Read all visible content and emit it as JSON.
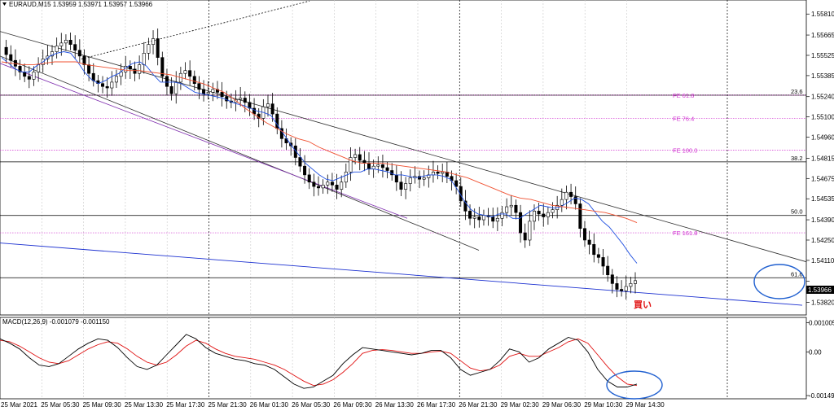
{
  "window": {
    "header": "EURAUD,M15  1.53959 1.53971 1.53957 1.53966",
    "macd_header": "MACD(12,26,9) -0.001079 -0.001150",
    "current_price": "1.53966"
  },
  "colors": {
    "background": "#ffffff",
    "candle": "#000000",
    "ma_fast": "#1f4fe0",
    "ma_slow": "#f05030",
    "macd_main": "#000000",
    "macd_signal": "#e01010",
    "fib_level": "#d030d0",
    "trend_line": "#303030",
    "support_line": "#1a2fd0",
    "annotation_circle": "#2060d0",
    "buy_text": "#e01010"
  },
  "chart_data": [
    {
      "type": "candlestick",
      "symbol": "EURAUD",
      "timeframe": "M15",
      "ylim": [
        1.5375,
        1.5589
      ],
      "y_ticks": [
        "1.55810",
        "1.55665",
        "1.55525",
        "1.55385",
        "1.55240",
        "1.55100",
        "1.54960",
        "1.54815",
        "1.54675",
        "1.54535",
        "1.54390",
        "1.54250",
        "1.54110",
        "1.53966",
        "1.53820"
      ],
      "x_ticks": [
        "25 Mar 2021",
        "25 Mar 05:30",
        "25 Mar 09:30",
        "25 Mar 13:30",
        "25 Mar 17:30",
        "25 Mar 21:30",
        "26 Mar 01:30",
        "26 Mar 05:30",
        "26 Mar 09:30",
        "26 Mar 13:30",
        "26 Mar 17:30",
        "26 Mar 21:30",
        "29 Mar 02:30",
        "29 Mar 06:30",
        "29 Mar 10:30",
        "29 Mar 14:30"
      ],
      "session_breaks": [
        "25 Mar 21:30",
        "26 Mar 21:30"
      ],
      "close_path": [
        1.5558,
        1.5553,
        1.5549,
        1.5545,
        1.5541,
        1.5538,
        1.5536,
        1.5541,
        1.5546,
        1.555,
        1.5552,
        1.5555,
        1.5559,
        1.5561,
        1.5563,
        1.556,
        1.5556,
        1.5552,
        1.5546,
        1.554,
        1.5535,
        1.5533,
        1.5531,
        1.553,
        1.5534,
        1.5538,
        1.5541,
        1.5545,
        1.5543,
        1.554,
        1.5546,
        1.5554,
        1.556,
        1.5564,
        1.5551,
        1.5538,
        1.5531,
        1.5526,
        1.5534,
        1.554,
        1.5542,
        1.5538,
        1.5533,
        1.5529,
        1.5526,
        1.5527,
        1.5529,
        1.5527,
        1.5524,
        1.5521,
        1.552,
        1.5522,
        1.5523,
        1.552,
        1.5516,
        1.5512,
        1.5509,
        1.5517,
        1.5519,
        1.5512,
        1.5502,
        1.5495,
        1.5492,
        1.549,
        1.5482,
        1.5476,
        1.547,
        1.5465,
        1.5462,
        1.5461,
        1.5463,
        1.5465,
        1.5463,
        1.546,
        1.5465,
        1.5472,
        1.5482,
        1.5484,
        1.548,
        1.5478,
        1.5474,
        1.5476,
        1.5477,
        1.5475,
        1.5473,
        1.547,
        1.5465,
        1.546,
        1.5464,
        1.5468,
        1.5469,
        1.5467,
        1.5468,
        1.547,
        1.5472,
        1.5471,
        1.5472,
        1.5469,
        1.5466,
        1.5462,
        1.5452,
        1.5445,
        1.544,
        1.5441,
        1.5439,
        1.5442,
        1.5441,
        1.5438,
        1.544,
        1.5444,
        1.5448,
        1.5449,
        1.5444,
        1.543,
        1.5425,
        1.5438,
        1.5445,
        1.5443,
        1.5441,
        1.5444,
        1.5446,
        1.5449,
        1.5453,
        1.5458,
        1.5455,
        1.545,
        1.5433,
        1.5425,
        1.5422,
        1.5415,
        1.5413,
        1.5407,
        1.5401,
        1.5395,
        1.5391,
        1.539,
        1.5393,
        1.5395,
        1.5397
      ],
      "ma_fast_path": [
        1.5551,
        1.5547,
        1.5543,
        1.5541,
        1.5541,
        1.5545,
        1.5548,
        1.5552,
        1.5554,
        1.5555,
        1.5554,
        1.5548,
        1.5541,
        1.5536,
        1.5533,
        1.5535,
        1.5538,
        1.554,
        1.5544,
        1.5547,
        1.5548,
        1.5545,
        1.5539,
        1.5534,
        1.5534,
        1.5534,
        1.5533,
        1.553,
        1.5527,
        1.5526,
        1.5525,
        1.5524,
        1.5523,
        1.5521,
        1.5519,
        1.5518,
        1.5516,
        1.5514,
        1.5513,
        1.5511,
        1.5504,
        1.5497,
        1.549,
        1.5484,
        1.5478,
        1.5474,
        1.547,
        1.5467,
        1.5466,
        1.5468,
        1.547,
        1.5472,
        1.5472,
        1.5474,
        1.5474,
        1.5473,
        1.5472,
        1.547,
        1.547,
        1.5469,
        1.5468,
        1.5469,
        1.547,
        1.547,
        1.5469,
        1.5467,
        1.546,
        1.5452,
        1.5446,
        1.5443,
        1.5442,
        1.5441,
        1.5443,
        1.5443,
        1.544,
        1.544,
        1.5443,
        1.5446,
        1.5449,
        1.5448,
        1.5447,
        1.5448,
        1.5451,
        1.5454,
        1.5453,
        1.545,
        1.5444,
        1.5438,
        1.5434,
        1.5428,
        1.5422,
        1.5415,
        1.5409
      ],
      "ma_slow_path": [
        1.5548,
        1.5547,
        1.5546,
        1.5546,
        1.5547,
        1.5548,
        1.5548,
        1.5548,
        1.5546,
        1.5545,
        1.5544,
        1.5543,
        1.5542,
        1.5542,
        1.5541,
        1.554,
        1.5539,
        1.5537,
        1.5535,
        1.5533,
        1.553,
        1.5527,
        1.5522,
        1.5516,
        1.5511,
        1.5506,
        1.5502,
        1.5498,
        1.5495,
        1.5493,
        1.5489,
        1.5486,
        1.5483,
        1.548,
        1.5478,
        1.5478,
        1.5478,
        1.5477,
        1.5476,
        1.5475,
        1.5474,
        1.5473,
        1.5472,
        1.547,
        1.5468,
        1.5465,
        1.5462,
        1.5459,
        1.5456,
        1.5454,
        1.5453,
        1.5451,
        1.5449,
        1.5448,
        1.5447,
        1.5446,
        1.5445,
        1.5444,
        1.5442,
        1.544,
        1.5437
      ],
      "horizontal_levels": [
        {
          "label": "23.6",
          "value": 1.5525,
          "color": "#000000"
        },
        {
          "label": "38.2",
          "value": 1.5479,
          "color": "#000000"
        },
        {
          "label": "50.0",
          "value": 1.5442,
          "color": "#000000"
        },
        {
          "label": "61.8",
          "value": 1.5399,
          "color": "#000000"
        },
        {
          "label": "FE 61.8",
          "value": 1.5525,
          "color": "#d030d0",
          "dotted": true
        },
        {
          "label": "FE 76.4",
          "value": 1.5509,
          "color": "#d030d0",
          "dotted": true
        },
        {
          "label": "FE 100.0",
          "value": 1.5487,
          "color": "#d030d0",
          "dotted": true
        },
        {
          "label": "FE 161.8",
          "value": 1.543,
          "color": "#d030d0",
          "dotted": true
        }
      ],
      "annotations": [
        {
          "text": "買い",
          "color": "#e01010"
        }
      ]
    },
    {
      "type": "line",
      "name": "MACD(12,26,9)",
      "ylim": [
        -0.00155,
        0.0011
      ],
      "y_ticks": [
        "0.001005",
        "0.00",
        "-0.001495"
      ],
      "macd_main": [
        0.00045,
        0.0003,
        0.0001,
        -0.0002,
        -0.00045,
        -0.0005,
        -0.0004,
        -0.00015,
        0.0001,
        0.0003,
        0.00045,
        0.0004,
        0.00015,
        -0.0002,
        -0.0005,
        -0.0006,
        -0.00045,
        -0.0001,
        0.00025,
        0.0006,
        0.00045,
        0.00015,
        -5e-05,
        -0.00015,
        -0.00025,
        -0.0003,
        -0.0004,
        -0.00045,
        -0.0006,
        -0.00085,
        -0.0011,
        -0.00125,
        -0.0012,
        -0.001,
        -0.0008,
        -0.0004,
        -0.0001,
        0.00015,
        0.0001,
        5e-05,
        0.0,
        -5e-05,
        -0.0001,
        -5e-05,
        5e-05,
        5e-05,
        -0.0002,
        -0.0006,
        -0.0008,
        -0.0007,
        -0.0006,
        -0.0003,
        0.0001,
        0.0,
        -0.00035,
        -0.0002,
        0.0001,
        0.0003,
        0.0005,
        0.0004,
        0.0,
        -0.0006,
        -0.001,
        -0.0012,
        -0.0012,
        -0.0011
      ],
      "macd_signal": [
        0.0004,
        0.00035,
        0.0002,
        0.0,
        -0.0002,
        -0.00035,
        -0.0004,
        -0.0003,
        -0.0001,
        0.0001,
        0.00025,
        0.00035,
        0.0003,
        0.0001,
        -0.00015,
        -0.00035,
        -0.00045,
        -0.00035,
        -0.0001,
        0.0002,
        0.0004,
        0.0003,
        0.0001,
        -5e-05,
        -0.00015,
        -0.0002,
        -0.00025,
        -0.00035,
        -0.00045,
        -0.0006,
        -0.0008,
        -0.001,
        -0.00115,
        -0.0011,
        -0.00095,
        -0.0007,
        -0.0004,
        -5e-05,
        5e-05,
        8e-05,
        5e-05,
        0.0,
        -5e-05,
        -5e-05,
        0.0,
        3e-05,
        -5e-05,
        -0.0003,
        -0.00055,
        -0.00065,
        -0.0006,
        -0.00045,
        -0.00015,
        -5e-05,
        -0.00015,
        -0.00015,
        0.0,
        0.00015,
        0.00035,
        0.00045,
        0.0003,
        -0.0001,
        -0.0005,
        -0.00085,
        -0.0011,
        -0.00115
      ]
    }
  ]
}
